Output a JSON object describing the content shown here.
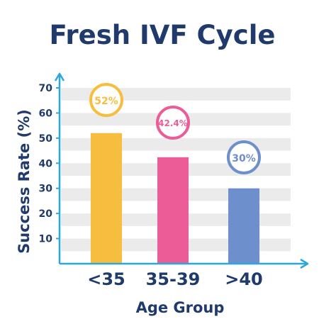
{
  "chart_data": {
    "type": "bar",
    "title": "Fresh IVF Cycle",
    "xlabel": "Age Group",
    "ylabel": "Success Rate (%)",
    "categories": [
      "<35",
      "35-39",
      ">40"
    ],
    "values": [
      52,
      42.4,
      30
    ],
    "data_labels": [
      "52%",
      "42.4%",
      "30%"
    ],
    "ylim": [
      0,
      70
    ],
    "yticks": [
      "10",
      "20",
      "30",
      "40",
      "50",
      "60",
      "70"
    ],
    "grid": "alternating horizontal bands",
    "colors": {
      "title": "#1f3a6b",
      "axis": "#2aa8dc",
      "band": "#ebebeb",
      "bars": [
        "#f7bd3f",
        "#ec5c97",
        "#6d8fcb"
      ]
    }
  }
}
